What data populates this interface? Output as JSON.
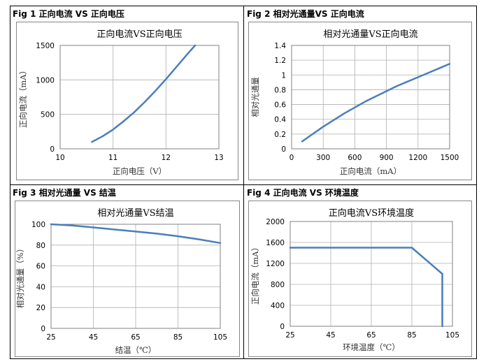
{
  "panels": [
    {
      "header": "Fig 1  正向电流  VS  正向电压",
      "chart_data": {
        "type": "line",
        "title": "正向电流VS正向电压",
        "xlabel": "正向电压（V）",
        "ylabel": "正向电流（mA）",
        "xlim": [
          10,
          13
        ],
        "ylim": [
          0,
          1500
        ],
        "xticks": [
          10,
          11,
          12,
          13
        ],
        "yticks": [
          0,
          500,
          1000,
          1500
        ],
        "grid": true,
        "series": [
          {
            "color": "#4a7ebb",
            "x": [
              10.6,
              10.8,
              11.0,
              11.2,
              11.4,
              11.6,
              11.8,
              12.0,
              12.2,
              12.4,
              12.55
            ],
            "y": [
              100,
              180,
              280,
              400,
              530,
              680,
              840,
              1010,
              1190,
              1370,
              1500
            ]
          }
        ]
      }
    },
    {
      "header": "Fig 2  相对光通量VS  正向电流",
      "chart_data": {
        "type": "line",
        "title": "相对光通量VS正向电流",
        "xlabel": "正向电流（mA）",
        "ylabel": "相对光通量",
        "xlim": [
          0,
          1500
        ],
        "ylim": [
          0,
          1.4
        ],
        "xticks": [
          0,
          300,
          600,
          900,
          1200,
          1500
        ],
        "yticks": [
          0,
          0.2,
          0.4,
          0.6,
          0.8,
          1,
          1.2,
          1.4
        ],
        "grid": true,
        "series": [
          {
            "color": "#4a7ebb",
            "x": [
              100,
              200,
              300,
              400,
              500,
              600,
              700,
              800,
              900,
              1000,
              1100,
              1200,
              1300,
              1400,
              1500
            ],
            "y": [
              0.1,
              0.2,
              0.3,
              0.39,
              0.48,
              0.56,
              0.64,
              0.71,
              0.78,
              0.85,
              0.91,
              0.97,
              1.03,
              1.09,
              1.15
            ]
          }
        ]
      }
    },
    {
      "header": "Fig 3  相对光通量  VS  结温",
      "chart_data": {
        "type": "line",
        "title": "相对光通量VS结温",
        "xlabel": "结温（℃）",
        "ylabel": "相对光通量（%）",
        "xlim": [
          25,
          105
        ],
        "ylim": [
          0,
          100
        ],
        "xticks": [
          25,
          45,
          65,
          85,
          105
        ],
        "yticks": [
          0,
          20,
          40,
          60,
          80,
          100
        ],
        "grid": true,
        "series": [
          {
            "color": "#4a7ebb",
            "x": [
              25,
              35,
              45,
              55,
              65,
              75,
              85,
              95,
              105
            ],
            "y": [
              100,
              98.8,
              97,
              95,
              93,
              91,
              88.5,
              85.5,
              82
            ]
          }
        ]
      }
    },
    {
      "header": "Fig 4  正向电流  VS  环境温度",
      "chart_data": {
        "type": "line",
        "title": "正向电流VS环境温度",
        "xlabel": "环境温度（℃）",
        "ylabel": "正向电流（mA）",
        "xlim": [
          25,
          105
        ],
        "ylim": [
          0,
          2000
        ],
        "xticks": [
          25,
          45,
          65,
          85,
          105
        ],
        "yticks": [
          0,
          400,
          800,
          1200,
          1600,
          2000
        ],
        "grid": true,
        "series": [
          {
            "color": "#4a7ebb",
            "x": [
              25,
              85,
              100,
              100
            ],
            "y": [
              1500,
              1500,
              1000,
              0
            ]
          }
        ]
      }
    }
  ]
}
